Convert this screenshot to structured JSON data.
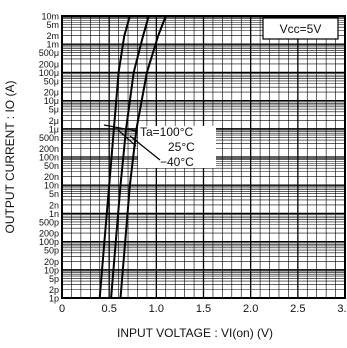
{
  "chart_data": {
    "type": "line",
    "title": "",
    "xlabel": "INPUT VOLTAGE : VI(on) (V)",
    "ylabel": "OUTPUT CURRENT : IO (A)",
    "xlim": [
      0,
      3.0
    ],
    "ylim_log": [
      "1p",
      "10m"
    ],
    "y_scale": "log",
    "grid": true,
    "x_ticks": [
      "0",
      "0.5",
      "1.0",
      "1.5",
      "2.0",
      "2.5",
      "3.0"
    ],
    "y_ticks": [
      "1p",
      "2p",
      "5p",
      "10p",
      "20p",
      "50p",
      "100p",
      "200p",
      "500p",
      "1n",
      "2n",
      "5n",
      "10n",
      "20n",
      "50n",
      "100n",
      "200n",
      "500n",
      "1μ",
      "2μ",
      "5μ",
      "10μ",
      "20μ",
      "50μ",
      "100μ",
      "200μ",
      "500μ",
      "1m",
      "2m",
      "5m",
      "10m"
    ],
    "condition_label": "Vcc=5V",
    "series": [
      {
        "name": "Ta=100°C",
        "points": [
          [
            0.4,
            1e-12
          ],
          [
            0.45,
            1e-10
          ],
          [
            0.5,
            1e-08
          ],
          [
            0.55,
            1e-06
          ],
          [
            0.6,
            0.0001
          ],
          [
            0.66,
            0.002
          ],
          [
            0.72,
            0.01
          ]
        ]
      },
      {
        "name": "25°C",
        "points": [
          [
            0.52,
            1e-12
          ],
          [
            0.57,
            1e-10
          ],
          [
            0.62,
            1e-08
          ],
          [
            0.68,
            1e-06
          ],
          [
            0.76,
            0.0001
          ],
          [
            0.86,
            0.002
          ],
          [
            0.92,
            0.01
          ]
        ]
      },
      {
        "name": "−40°C",
        "points": [
          [
            0.62,
            1e-12
          ],
          [
            0.67,
            1e-10
          ],
          [
            0.72,
            1e-08
          ],
          [
            0.79,
            1e-06
          ],
          [
            0.9,
            0.0001
          ],
          [
            1.02,
            0.002
          ],
          [
            1.1,
            0.01
          ]
        ]
      }
    ]
  }
}
